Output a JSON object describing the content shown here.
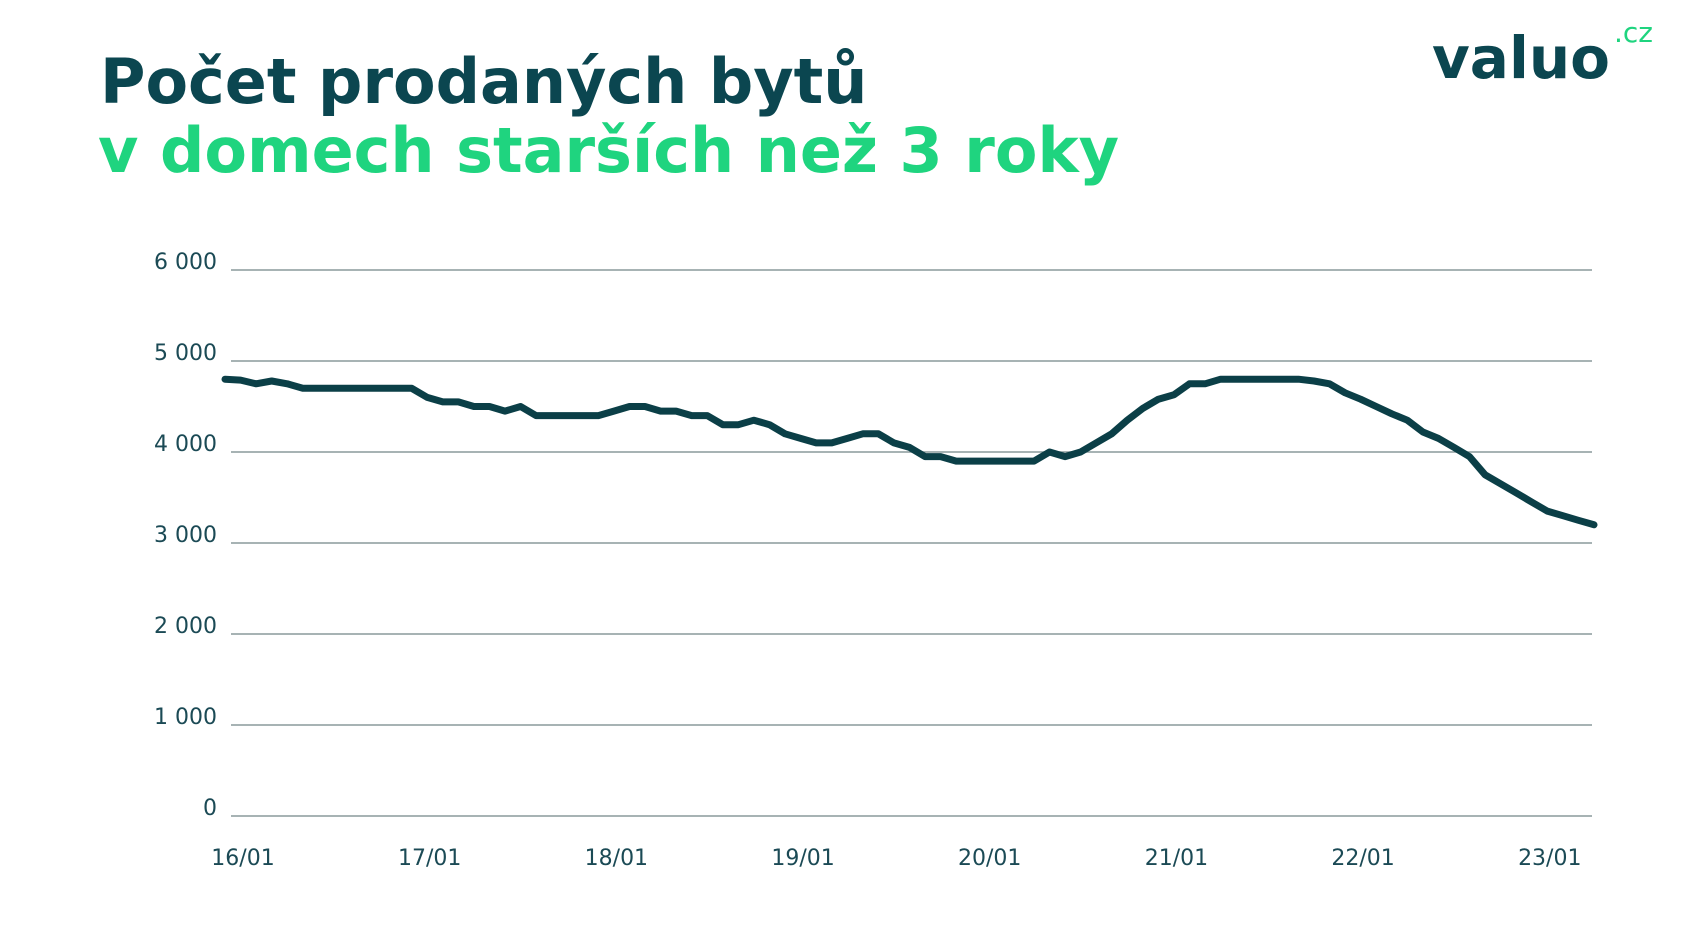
{
  "chart_data": {
    "type": "line",
    "title": "Počet prodaných bytů",
    "subtitle": "v domech starších než 3 roky",
    "categories": [
      "16/01",
      null,
      null,
      null,
      null,
      null,
      null,
      null,
      null,
      null,
      null,
      null,
      "17/01",
      null,
      null,
      null,
      null,
      null,
      null,
      null,
      null,
      null,
      null,
      null,
      "18/01",
      null,
      null,
      null,
      null,
      null,
      null,
      null,
      null,
      null,
      null,
      null,
      "19/01",
      null,
      null,
      null,
      null,
      null,
      null,
      null,
      null,
      null,
      null,
      null,
      "20/01",
      null,
      null,
      null,
      null,
      null,
      null,
      null,
      null,
      null,
      null,
      null,
      "21/01",
      null,
      null,
      null,
      null,
      null,
      null,
      null,
      null,
      null,
      null,
      null,
      "22/01",
      null,
      null,
      null,
      null,
      null,
      null,
      null,
      null,
      null,
      null,
      null,
      "23/01",
      null,
      null,
      null,
      null
    ],
    "series": [
      {
        "color": "#0b3f47",
        "values": [
          4800,
          4790,
          4750,
          4780,
          4750,
          4700,
          4700,
          4700,
          4700,
          4700,
          4700,
          4700,
          4700,
          4600,
          4550,
          4550,
          4500,
          4500,
          4450,
          4500,
          4400,
          4400,
          4400,
          4400,
          4400,
          4450,
          4500,
          4500,
          4450,
          4450,
          4400,
          4400,
          4300,
          4300,
          4350,
          4300,
          4200,
          4150,
          4100,
          4100,
          4150,
          4200,
          4200,
          4100,
          4050,
          3950,
          3950,
          3900,
          3900,
          3900,
          3900,
          3900,
          3900,
          4000,
          3950,
          4000,
          4100,
          4200,
          4350,
          4480,
          4580,
          4630,
          4750,
          4750,
          4800,
          4800,
          4800,
          4800,
          4800,
          4800,
          4780,
          4750,
          4650,
          4580,
          4500,
          4420,
          4350,
          4220,
          4150,
          4050,
          3950,
          3750,
          3650,
          3550,
          3450,
          3350,
          3300,
          3250,
          3200
        ]
      }
    ],
    "ylim": [
      0,
      6000
    ],
    "yticks": [
      0,
      {
        "value": 1000,
        "label": "1 000"
      },
      {
        "value": 2000,
        "label": "2 000"
      },
      {
        "value": 3000,
        "label": "3 000"
      },
      {
        "value": 4000,
        "label": "4 000"
      },
      {
        "value": 5000,
        "label": "5 000"
      },
      {
        "value": 6000,
        "label": "6 000"
      }
    ],
    "grid": true
  },
  "logo": {
    "name": "valuo",
    "suffix": ".cz"
  }
}
